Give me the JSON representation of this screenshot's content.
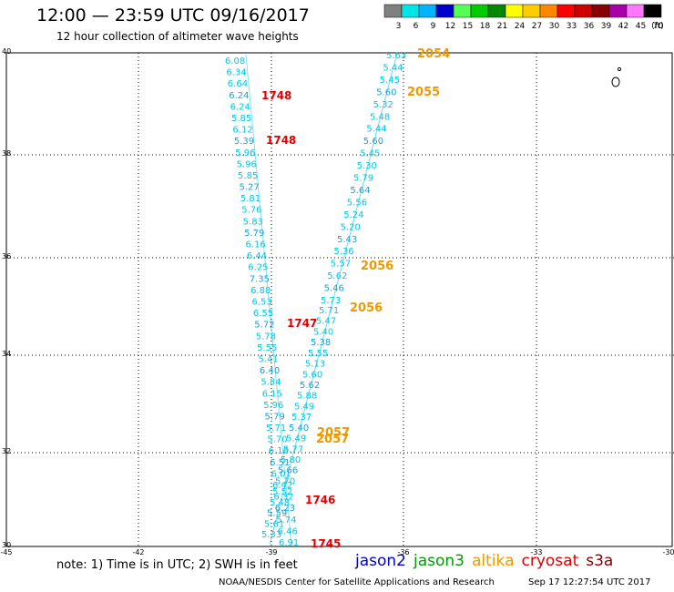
{
  "title": "12:00 — 23:59 UTC 09/16/2017",
  "subtitle": "12 hour collection of altimeter wave heights",
  "color_scale": {
    "labels": [
      "3",
      "6",
      "9",
      "12",
      "15",
      "18",
      "21",
      "24",
      "27",
      "30",
      "33",
      "36",
      "39",
      "42",
      "45",
      "70"
    ],
    "unit": "(ft)",
    "colors": [
      "#808080",
      "#00e5e5",
      "#00b4ff",
      "#0000cc",
      "#55ff55",
      "#00cc00",
      "#008800",
      "#ffff00",
      "#ffcc00",
      "#ff8800",
      "#ff0000",
      "#cc0000",
      "#880000",
      "#aa00aa",
      "#ff77ff",
      "#000000"
    ]
  },
  "axes": {
    "lat_ticks": [
      "40",
      "38",
      "36",
      "34",
      "32",
      "30"
    ],
    "lon_ticks": [
      "-45",
      "-42",
      "-39",
      "-36",
      "-33",
      "-30"
    ]
  },
  "track_colors": {
    "swh": "#00c8e6",
    "swh_dark": "#1aa0d8",
    "time_red": "#e00000",
    "time_orange": "#ee9900"
  },
  "tracks": {
    "left_swh": [
      "6.08",
      "6.34",
      "6.64",
      "6.24",
      "6.24",
      "5.85",
      "6.12",
      "5.39",
      "5.96",
      "5.96",
      "5.85",
      "5.27",
      "5.81",
      "5.76",
      "5.83",
      "5.79",
      "6.16",
      "6.44",
      "6.25",
      "7.35",
      "6.88",
      "6.53",
      "6.55",
      "5.72",
      "5.78",
      "5.55",
      "5.41",
      "6.40",
      "5.84",
      "6.15",
      "5.96",
      "5.79",
      "5.71",
      "5.70",
      "6.16",
      "6.51",
      "6.01",
      "6.42",
      "6.32",
      "6.23",
      "5.74",
      "6.46",
      "6.91"
    ],
    "right_swh": [
      "5.63",
      "5.44",
      "5.45",
      "5.60",
      "5.32",
      "5.48",
      "5.44",
      "5.60",
      "5.45",
      "5.30",
      "5.79",
      "5.64",
      "5.56",
      "5.24",
      "5.20",
      "5.43",
      "5.36",
      "5.57",
      "5.62",
      "5.46",
      "5.73"
    ],
    "dense_swh": [
      "5.71",
      "5.47",
      "5.40",
      "5.38",
      "5.55",
      "5.13",
      "5.60",
      "5.62",
      "5.88",
      "5.49",
      "5.37",
      "5.40",
      "5.49",
      "5.77",
      "5.80",
      "5.66",
      "5.70",
      "5.52",
      "5.48",
      "5.59",
      "5.61",
      "5.33"
    ]
  },
  "time_labels_red": [
    "1748",
    "1748",
    "1747",
    "1746",
    "1745"
  ],
  "time_labels_orange": [
    "2054",
    "2055",
    "2056",
    "2056",
    "2057",
    "2057"
  ],
  "note": "note:  1) Time is in UTC; 2) SWH is in feet",
  "legend": [
    {
      "name": "jason2",
      "color": "#0000cc"
    },
    {
      "name": "jason3",
      "color": "#009900"
    },
    {
      "name": "altika",
      "color": "#ee9900"
    },
    {
      "name": "cryosat",
      "color": "#dd0000"
    },
    {
      "name": "s3a",
      "color": "#880000"
    }
  ],
  "credit": "NOAA/NESDIS Center for Satellite Applications and Research",
  "timestamp": "Sep 17 12:27:54 UTC 2017"
}
